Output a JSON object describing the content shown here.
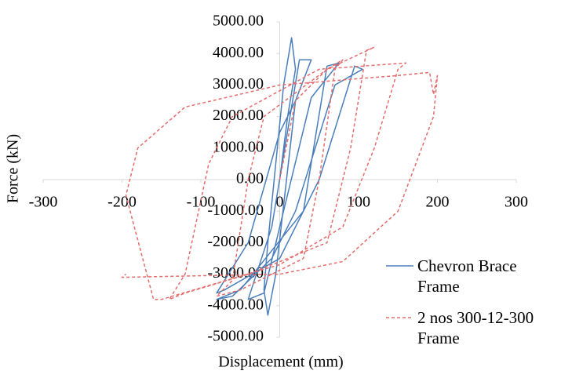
{
  "chart_data": {
    "type": "line",
    "x_label": "Displacement (mm)",
    "y_label": "Force (kN)",
    "xlim": [
      -300,
      300
    ],
    "xticks": [
      -300,
      -200,
      -100,
      0,
      100,
      200,
      300
    ],
    "ylim": [
      -5000,
      5000
    ],
    "yticks": [
      {
        "value": -5000,
        "label": "-5000.00"
      },
      {
        "value": -4000,
        "label": "-4000.00"
      },
      {
        "value": -3000,
        "label": "-3000.00"
      },
      {
        "value": -2000,
        "label": "-2000.00"
      },
      {
        "value": -1000,
        "label": "-1000.00"
      },
      {
        "value": 0,
        "label": "0.00"
      },
      {
        "value": 1000,
        "label": "1000.00"
      },
      {
        "value": 2000,
        "label": "2000.00"
      },
      {
        "value": 3000,
        "label": "3000.00"
      },
      {
        "value": 4000,
        "label": "4000.00"
      },
      {
        "value": 5000,
        "label": "5000.00"
      }
    ],
    "legend": "bottom-right",
    "series": [
      {
        "name": "Chevron Brace Frame",
        "color": "#4a7ebb",
        "dash": false,
        "x": [
          0,
          10,
          20,
          15,
          5,
          -15,
          -20,
          -15,
          -5,
          20,
          40,
          25,
          -10,
          -40,
          -20,
          0,
          40,
          75,
          60,
          30,
          -50,
          -80,
          -60,
          -10,
          20,
          70,
          105,
          95,
          50,
          0,
          -70,
          -80,
          -40,
          0,
          20
        ],
        "values": [
          0,
          2000,
          3500,
          4500,
          3000,
          -2000,
          -3500,
          -4300,
          -3000,
          2500,
          3800,
          3800,
          -1500,
          -3800,
          -3600,
          -1500,
          2600,
          3700,
          3600,
          -1000,
          -3500,
          -3800,
          -3700,
          -2500,
          -1000,
          3000,
          3500,
          3600,
          0,
          -2500,
          -3500,
          -3600,
          -2000,
          1500,
          2500
        ]
      },
      {
        "name": "2 nos 300-12-300 Frame",
        "color": "#e46c6c",
        "dash": true,
        "x": [
          0,
          20,
          60,
          80,
          70,
          50,
          30,
          -50,
          -80,
          -60,
          -40,
          -20,
          60,
          120,
          110,
          90,
          60,
          -40,
          -120,
          -140,
          -120,
          -90,
          -60,
          50,
          160,
          150,
          120,
          80,
          0,
          -150,
          -160,
          -195,
          -180,
          -120,
          0,
          150,
          190,
          195,
          200,
          195,
          150,
          80,
          0,
          -200,
          -195
        ],
        "values": [
          0,
          2500,
          3500,
          3800,
          3500,
          0,
          -2500,
          -3500,
          -3700,
          -3200,
          0,
          2000,
          3500,
          4200,
          4100,
          1000,
          -2000,
          -3000,
          -3600,
          -3800,
          -3000,
          500,
          2000,
          3500,
          3700,
          3500,
          1000,
          -1500,
          -2700,
          -3800,
          -3800,
          -500,
          1000,
          2300,
          3000,
          3300,
          3400,
          2700,
          3300,
          2000,
          -1000,
          -2600,
          -3000,
          -3100,
          -3000
        ]
      }
    ]
  }
}
